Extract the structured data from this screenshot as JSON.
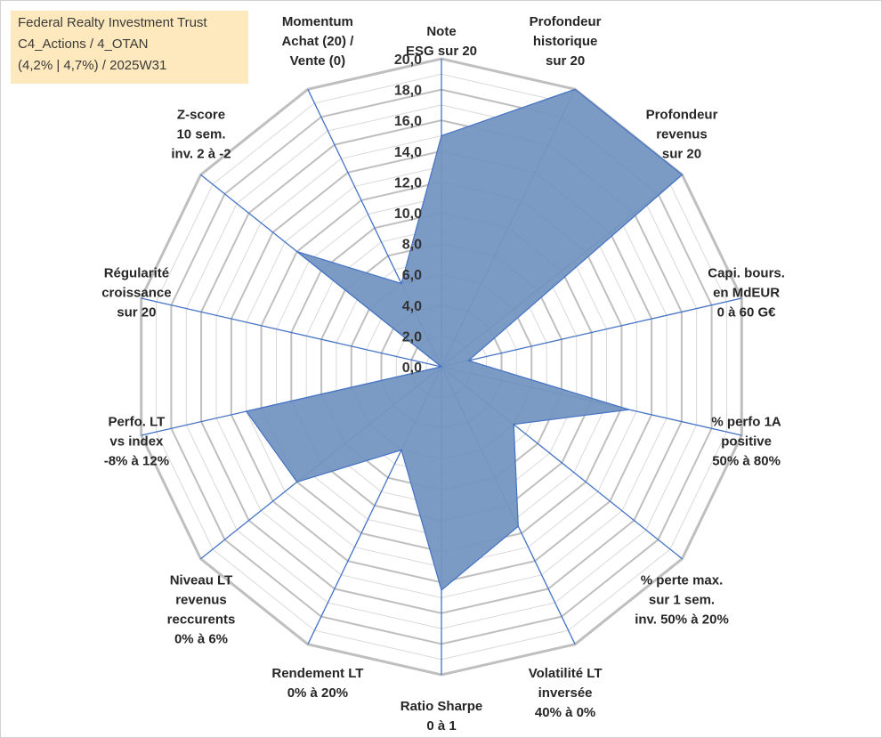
{
  "info": {
    "line1": "Federal Realty Investment Trust",
    "line2": "C4_Actions / 4_OTAN",
    "line3": "(4,2% | 4,7%) / 2025W31"
  },
  "chart_data": {
    "type": "radar",
    "title": "",
    "rlim": [
      0,
      20
    ],
    "ticks": [
      "0,0",
      "2,0",
      "4,0",
      "6,0",
      "8,0",
      "10,0",
      "12,0",
      "14,0",
      "16,0",
      "18,0",
      "20,0"
    ],
    "grid": true,
    "axes": [
      {
        "label": [
          "Note",
          "ESG sur 20"
        ],
        "value": 15.0
      },
      {
        "label": [
          "Profondeur",
          "historique",
          "sur 20"
        ],
        "value": 20.0
      },
      {
        "label": [
          "Profondeur",
          "revenus",
          "sur 20"
        ],
        "value": 20.0
      },
      {
        "label": [
          "Capi. bours.",
          "en MdEUR",
          "0 à 60 G€"
        ],
        "value": 1.8
      },
      {
        "label": [
          "% perfo 1A",
          "positive",
          "50% à 80%"
        ],
        "value": 12.5
      },
      {
        "label": [
          "% perte max.",
          "sur 1 sem.",
          "inv. 50% à 20%"
        ],
        "value": 6.0
      },
      {
        "label": [
          "Volatilité LT",
          "inversée",
          "40% à 0%"
        ],
        "value": 11.5
      },
      {
        "label": [
          "Ratio Sharpe",
          "0 à 1"
        ],
        "value": 14.5
      },
      {
        "label": [
          "Rendement LT",
          "0% à 20%"
        ],
        "value": 6.0
      },
      {
        "label": [
          "Niveau LT",
          "revenus",
          "reccurents",
          "0% à 6%"
        ],
        "value": 12.0
      },
      {
        "label": [
          "Perfo. LT",
          "vs index",
          "-8% à 12%"
        ],
        "value": 13.0
      },
      {
        "label": [
          "Régularité",
          "croissance",
          "sur 20"
        ],
        "value": 0.0
      },
      {
        "label": [
          "Z-score",
          "10 sem.",
          "inv. 2 à -2"
        ],
        "value": 12.0
      },
      {
        "label": [
          "Momentum",
          "Achat (20) /",
          "Vente (0)"
        ],
        "value": 6.0
      }
    ],
    "colors": {
      "fill": "#7596c1",
      "edge": "#4472c4",
      "spoke": "#4472c4",
      "grid_major": "#bfbfbf",
      "grid_minor": "#d9d9d9"
    }
  }
}
